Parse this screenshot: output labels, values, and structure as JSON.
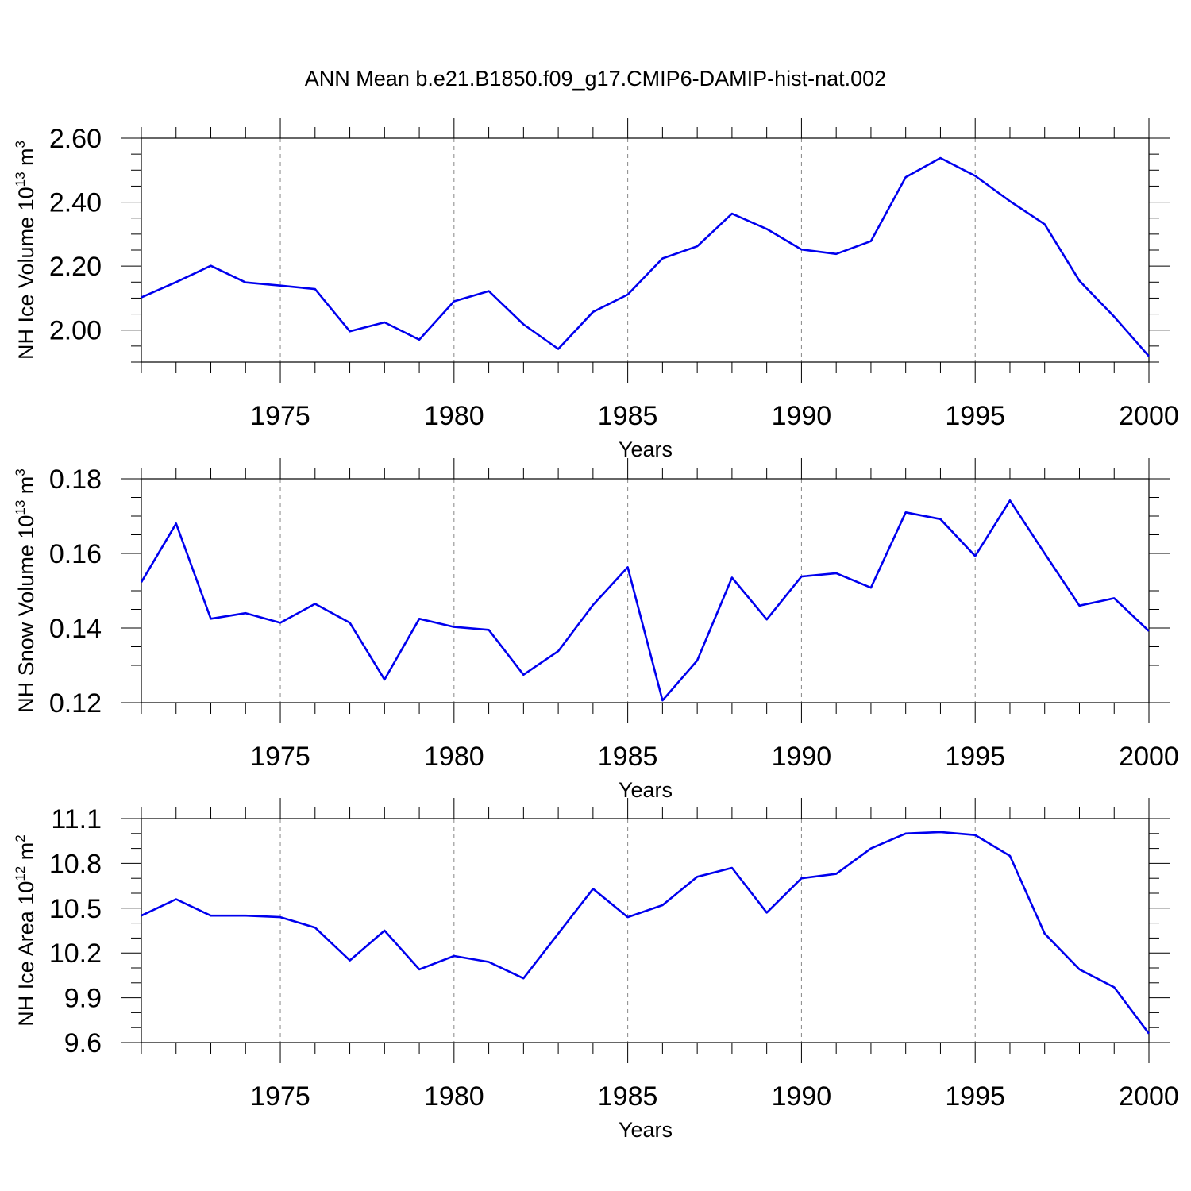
{
  "title": "ANN Mean b.e21.B1850.f09_g17.CMIP6-DAMIP-hist-nat.002",
  "colors": {
    "line": "#0000ee",
    "axis": "#000000",
    "grid": "#888888"
  },
  "chart_data": [
    {
      "type": "line",
      "ylabel": "NH Ice Volume 10",
      "ylabel_exp": "13",
      "ylabel_unit": " m",
      "ylabel_unit_exp": "3",
      "xlabel": "Years",
      "xlim": [
        1971,
        2000
      ],
      "ylim": [
        1.9,
        2.6
      ],
      "yticks": [
        2.0,
        2.2,
        2.4,
        2.6
      ],
      "ytick_labels": [
        "2.00",
        "2.20",
        "2.40",
        "2.60"
      ],
      "yminor_step": 0.05,
      "xticks": [
        1975,
        1980,
        1985,
        1990,
        1995,
        2000
      ],
      "xtick_labels": [
        "1975",
        "1980",
        "1985",
        "1990",
        "1995",
        "2000"
      ],
      "grid": "dashed vertical at major x ticks",
      "x": [
        1971,
        1972,
        1973,
        1974,
        1975,
        1976,
        1977,
        1978,
        1979,
        1980,
        1981,
        1982,
        1983,
        1984,
        1985,
        1986,
        1987,
        1988,
        1989,
        1990,
        1991,
        1992,
        1993,
        1994,
        1995,
        1996,
        1997,
        1998,
        1999,
        2000
      ],
      "values": [
        2.102,
        2.15,
        2.201,
        2.149,
        2.139,
        2.128,
        1.996,
        2.024,
        1.97,
        2.09,
        2.122,
        2.018,
        1.941,
        2.057,
        2.111,
        2.224,
        2.262,
        2.364,
        2.316,
        2.252,
        2.238,
        2.278,
        2.478,
        2.538,
        2.482,
        2.403,
        2.331,
        2.154,
        2.042,
        1.918
      ]
    },
    {
      "type": "line",
      "ylabel": "NH Snow Volume 10",
      "ylabel_exp": "13",
      "ylabel_unit": " m",
      "ylabel_unit_exp": "3",
      "xlabel": "Years",
      "xlim": [
        1971,
        2000
      ],
      "ylim": [
        0.12,
        0.18
      ],
      "yticks": [
        0.12,
        0.14,
        0.16,
        0.18
      ],
      "ytick_labels": [
        "0.12",
        "0.14",
        "0.16",
        "0.18"
      ],
      "yminor_step": 0.005,
      "xticks": [
        1975,
        1980,
        1985,
        1990,
        1995,
        2000
      ],
      "xtick_labels": [
        "1975",
        "1980",
        "1985",
        "1990",
        "1995",
        "2000"
      ],
      "grid": "dashed vertical at major x ticks",
      "x": [
        1971,
        1972,
        1973,
        1974,
        1975,
        1976,
        1977,
        1978,
        1979,
        1980,
        1981,
        1982,
        1983,
        1984,
        1985,
        1986,
        1987,
        1988,
        1989,
        1990,
        1991,
        1992,
        1993,
        1994,
        1995,
        1996,
        1997,
        1998,
        1999,
        2000
      ],
      "values": [
        0.1523,
        0.168,
        0.1425,
        0.144,
        0.1414,
        0.1465,
        0.1414,
        0.1262,
        0.1425,
        0.1403,
        0.1395,
        0.1275,
        0.1338,
        0.1462,
        0.1563,
        0.1206,
        0.1313,
        0.1535,
        0.1423,
        0.1538,
        0.1547,
        0.1508,
        0.171,
        0.1692,
        0.1593,
        0.1742,
        0.16,
        0.146,
        0.148,
        0.1392
      ]
    },
    {
      "type": "line",
      "ylabel": "NH Ice Area 10",
      "ylabel_exp": "12",
      "ylabel_unit": " m",
      "ylabel_unit_exp": "2",
      "xlabel": "Years",
      "xlim": [
        1971,
        2000
      ],
      "ylim": [
        9.6,
        11.1
      ],
      "yticks": [
        9.6,
        9.9,
        10.2,
        10.5,
        10.8,
        11.1
      ],
      "ytick_labels": [
        "9.6",
        "9.9",
        "10.2",
        "10.5",
        "10.8",
        "11.1"
      ],
      "yminor_step": 0.1,
      "xticks": [
        1975,
        1980,
        1985,
        1990,
        1995,
        2000
      ],
      "xtick_labels": [
        "1975",
        "1980",
        "1985",
        "1990",
        "1995",
        "2000"
      ],
      "grid": "dashed vertical at major x ticks",
      "x": [
        1971,
        1972,
        1973,
        1974,
        1975,
        1976,
        1977,
        1978,
        1979,
        1980,
        1981,
        1982,
        1983,
        1984,
        1985,
        1986,
        1987,
        1988,
        1989,
        1990,
        1991,
        1992,
        1993,
        1994,
        1995,
        1996,
        1997,
        1998,
        1999,
        2000
      ],
      "values": [
        10.45,
        10.56,
        10.45,
        10.45,
        10.44,
        10.37,
        10.15,
        10.35,
        10.09,
        10.18,
        10.14,
        10.03,
        10.33,
        10.63,
        10.44,
        10.52,
        10.71,
        10.77,
        10.47,
        10.7,
        10.73,
        10.9,
        11.0,
        11.01,
        10.99,
        10.85,
        10.33,
        10.09,
        9.97,
        9.66
      ]
    }
  ]
}
